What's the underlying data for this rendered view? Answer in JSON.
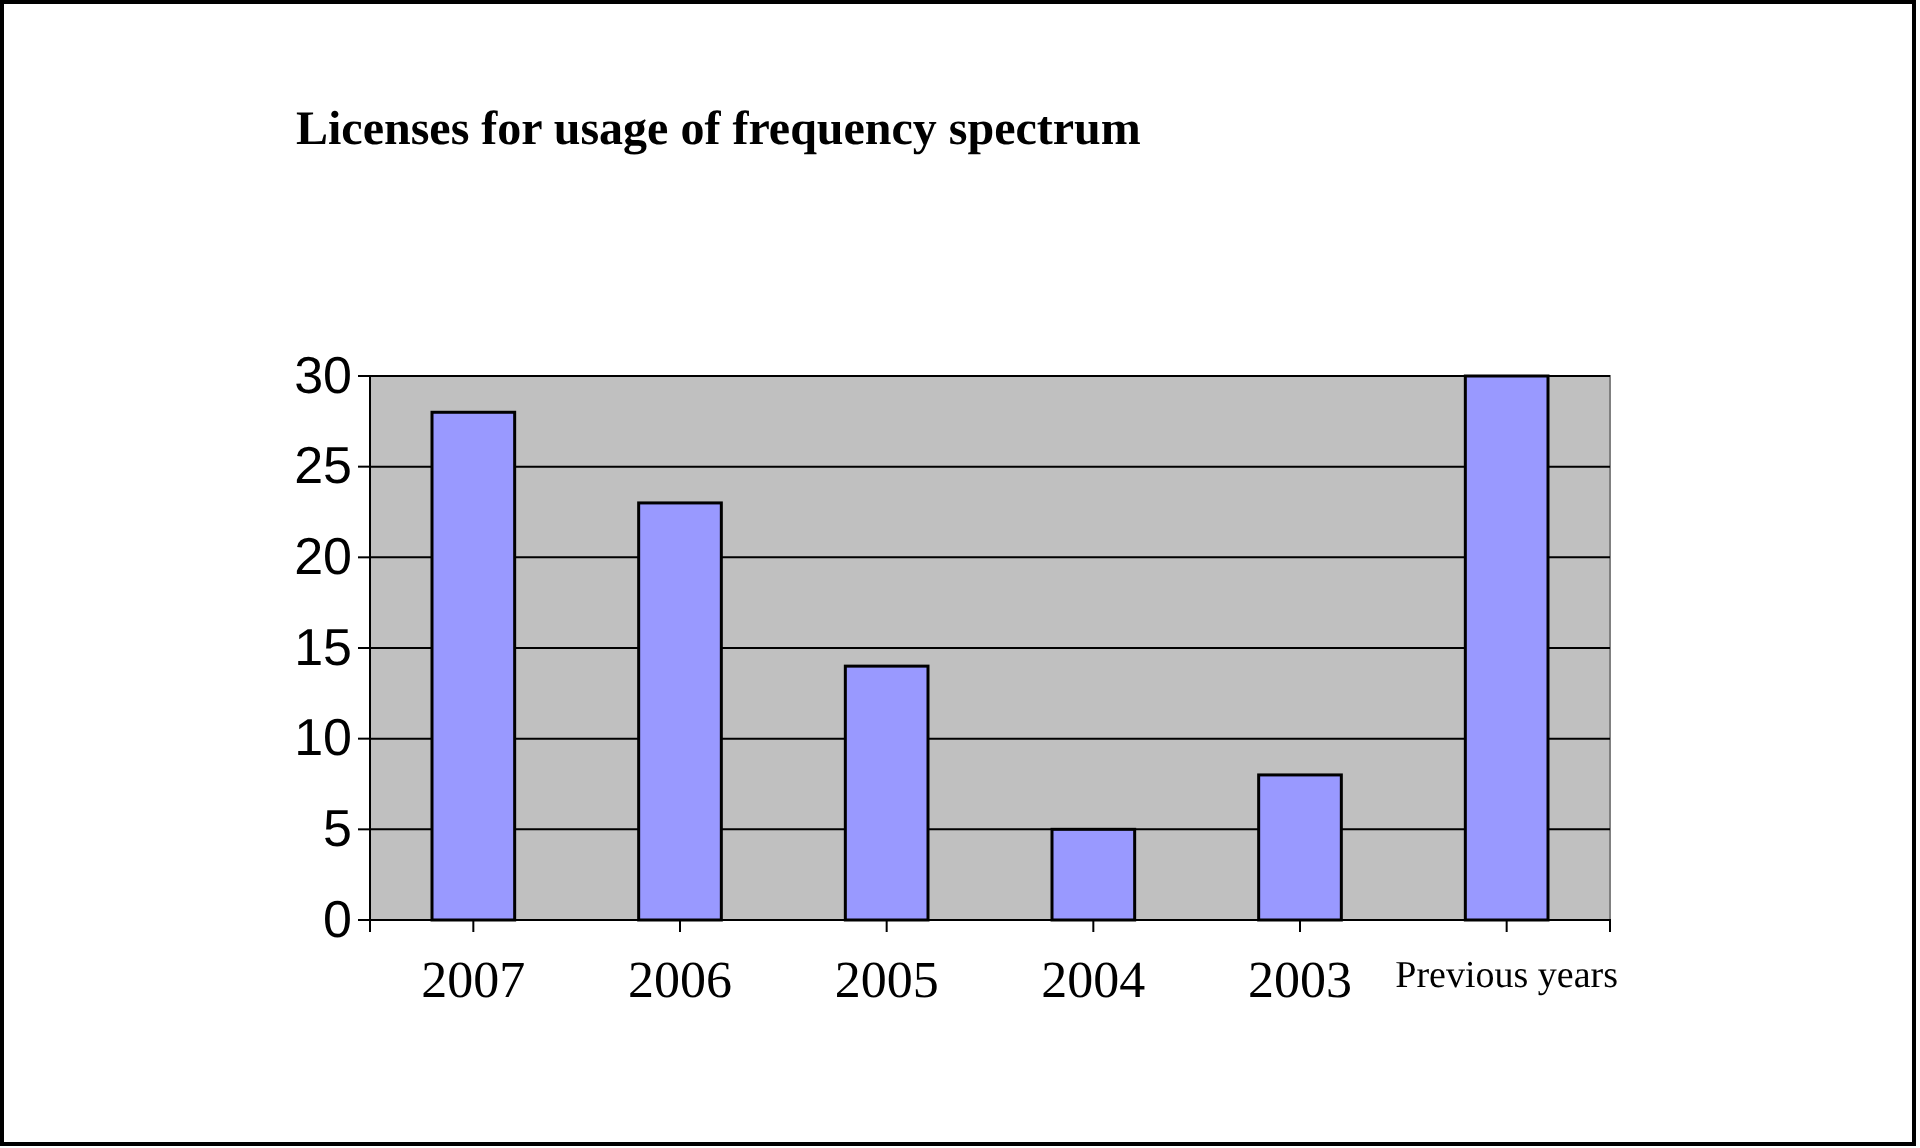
{
  "chart_data": {
    "type": "bar",
    "title": "Licenses for usage of frequency spectrum",
    "categories": [
      "2007",
      "2006",
      "2005",
      "2004",
      "2003",
      "Previous years"
    ],
    "values": [
      28,
      23,
      14,
      5,
      8,
      30
    ],
    "color": "#9999ff",
    "ylim": [
      0,
      30
    ],
    "yticks": [
      0,
      5,
      10,
      15,
      20,
      25,
      30
    ],
    "grid": "y"
  }
}
